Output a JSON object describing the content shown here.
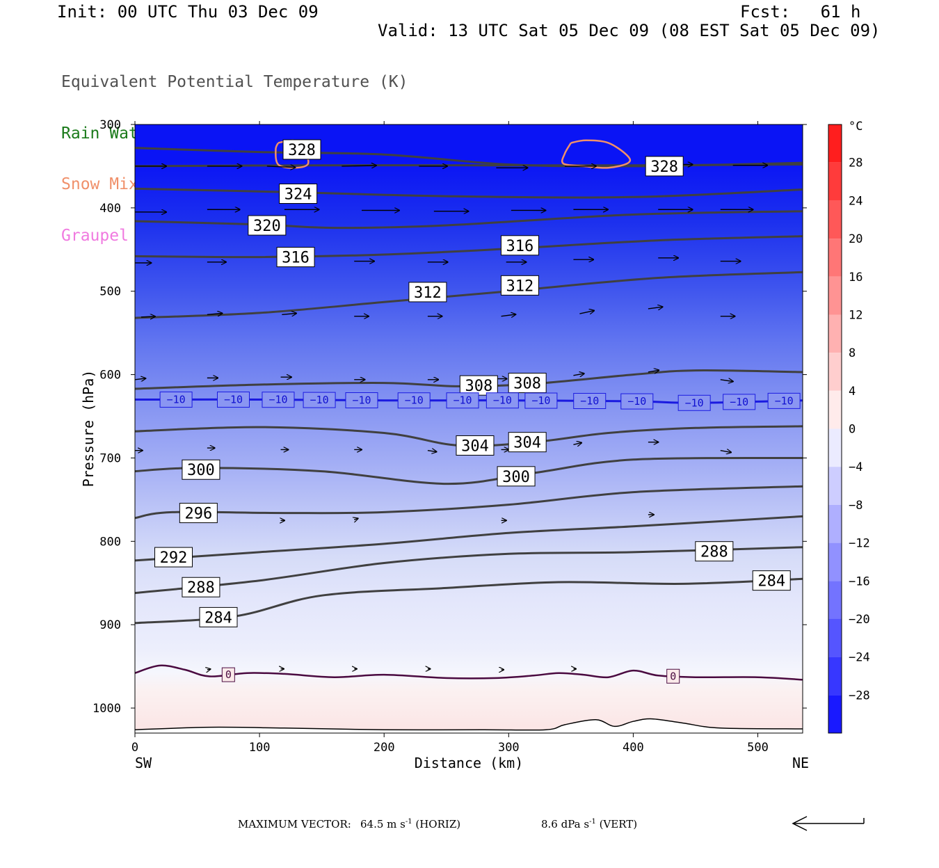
{
  "header": {
    "init": "Init: 00 UTC Thu 03 Dec 09",
    "fcst": "Fcst:   61 h",
    "valid": "Valid: 13 UTC Sat 05 Dec 09 (08 EST Sat 05 Dec 09)"
  },
  "legend": [
    {
      "label": "Equivalent Potential Temperature (K)",
      "color": "#505050"
    },
    {
      "label": "Rain Water Mixing Ratio (g/kg)",
      "color": "#1a7a1a"
    },
    {
      "label": "Snow Mixing Ratio (g/kg)",
      "color": "#f0906a"
    },
    {
      "label": "Graupel Mixing Ratio (g/kg)",
      "color": "#f07ae0"
    }
  ],
  "chart_data": {
    "type": "heatmap",
    "xlabel": "Distance (km)",
    "ylabel": "Pressure (hPa)",
    "xlim": [
      0,
      536
    ],
    "ylim": [
      1030,
      300
    ],
    "x_ticks": [
      0,
      100,
      200,
      300,
      400,
      500
    ],
    "y_ticks": [
      300,
      400,
      500,
      600,
      700,
      800,
      900,
      1000
    ],
    "x_end_labels": {
      "left": "SW",
      "right": "NE"
    },
    "colorbar": {
      "unit": "°C",
      "range": [
        -32,
        32
      ],
      "tick_values": [
        28,
        24,
        20,
        16,
        12,
        8,
        4,
        0,
        -4,
        -8,
        -12,
        -16,
        -20,
        -24,
        -28
      ]
    },
    "theta_e_contours": [
      {
        "value": 328,
        "p": [
          [
            0,
            328
          ],
          [
            100,
            333
          ],
          [
            200,
            336
          ],
          [
            300,
            348
          ],
          [
            400,
            350
          ],
          [
            536,
            346
          ]
        ]
      },
      {
        "value": 328,
        "p": [
          [
            0,
            350
          ],
          [
            150,
            349
          ],
          [
            300,
            349
          ],
          [
            400,
            349
          ],
          [
            536,
            348
          ]
        ]
      },
      {
        "value": 324,
        "p": [
          [
            0,
            377
          ],
          [
            120,
            381
          ],
          [
            250,
            386
          ],
          [
            400,
            387
          ],
          [
            536,
            378
          ]
        ]
      },
      {
        "value": 320,
        "p": [
          [
            0,
            416
          ],
          [
            100,
            420
          ],
          [
            160,
            424
          ],
          [
            250,
            421
          ],
          [
            400,
            408
          ],
          [
            536,
            404
          ]
        ]
      },
      {
        "value": 316,
        "p": [
          [
            0,
            458
          ],
          [
            100,
            459
          ],
          [
            200,
            456
          ],
          [
            300,
            449
          ],
          [
            420,
            439
          ],
          [
            536,
            434
          ]
        ]
      },
      {
        "value": 312,
        "p": [
          [
            0,
            532
          ],
          [
            100,
            526
          ],
          [
            200,
            513
          ],
          [
            300,
            500
          ],
          [
            420,
            484
          ],
          [
            536,
            477
          ]
        ]
      },
      {
        "value": 308,
        "p": [
          [
            0,
            617
          ],
          [
            100,
            612
          ],
          [
            200,
            610
          ],
          [
            260,
            614
          ],
          [
            320,
            611
          ],
          [
            400,
            600
          ],
          [
            450,
            595
          ],
          [
            536,
            597
          ]
        ]
      },
      {
        "value": 304,
        "p": [
          [
            0,
            668
          ],
          [
            100,
            663
          ],
          [
            200,
            670
          ],
          [
            260,
            685
          ],
          [
            320,
            681
          ],
          [
            380,
            670
          ],
          [
            450,
            664
          ],
          [
            536,
            662
          ]
        ]
      },
      {
        "value": 300,
        "p": [
          [
            0,
            716
          ],
          [
            50,
            712
          ],
          [
            150,
            716
          ],
          [
            250,
            731
          ],
          [
            320,
            718
          ],
          [
            400,
            702
          ],
          [
            536,
            700
          ]
        ]
      },
      {
        "value": 296,
        "p": [
          [
            0,
            772
          ],
          [
            30,
            765
          ],
          [
            120,
            766
          ],
          [
            200,
            765
          ],
          [
            300,
            756
          ],
          [
            400,
            741
          ],
          [
            536,
            734
          ]
        ]
      },
      {
        "value": 292,
        "p": [
          [
            0,
            823
          ],
          [
            100,
            813
          ],
          [
            200,
            803
          ],
          [
            300,
            790
          ],
          [
            400,
            782
          ],
          [
            536,
            770
          ]
        ]
      },
      {
        "value": 288,
        "p": [
          [
            0,
            862
          ],
          [
            100,
            847
          ],
          [
            200,
            826
          ],
          [
            300,
            815
          ],
          [
            400,
            813
          ],
          [
            536,
            807
          ]
        ]
      },
      {
        "value": 284,
        "p": [
          [
            0,
            898
          ],
          [
            80,
            890
          ],
          [
            150,
            865
          ],
          [
            250,
            856
          ],
          [
            340,
            849
          ],
          [
            440,
            851
          ],
          [
            536,
            845
          ]
        ]
      }
    ],
    "contour_labels": [
      {
        "text": "328",
        "x": 134,
        "p": 330
      },
      {
        "text": "328",
        "x": 425,
        "p": 350
      },
      {
        "text": "324",
        "x": 131,
        "p": 383
      },
      {
        "text": "320",
        "x": 106,
        "p": 421
      },
      {
        "text": "316",
        "x": 129,
        "p": 459
      },
      {
        "text": "316",
        "x": 309,
        "p": 445
      },
      {
        "text": "312",
        "x": 235,
        "p": 501
      },
      {
        "text": "312",
        "x": 309,
        "p": 493
      },
      {
        "text": "308",
        "x": 276,
        "p": 613
      },
      {
        "text": "308",
        "x": 315,
        "p": 610
      },
      {
        "text": "304",
        "x": 273,
        "p": 685
      },
      {
        "text": "304",
        "x": 315,
        "p": 681
      },
      {
        "text": "300",
        "x": 53,
        "p": 714
      },
      {
        "text": "300",
        "x": 306,
        "p": 722
      },
      {
        "text": "296",
        "x": 51,
        "p": 766
      },
      {
        "text": "292",
        "x": 31,
        "p": 819
      },
      {
        "text": "288",
        "x": 53,
        "p": 855
      },
      {
        "text": "288",
        "x": 465,
        "p": 812
      },
      {
        "text": "284",
        "x": 67,
        "p": 891
      },
      {
        "text": "284",
        "x": 511,
        "p": 847
      }
    ],
    "isotherm_minus10": {
      "value": -10,
      "p": [
        [
          0,
          630
        ],
        [
          100,
          630
        ],
        [
          200,
          631
        ],
        [
          300,
          631
        ],
        [
          400,
          632
        ],
        [
          450,
          634
        ],
        [
          536,
          631
        ]
      ],
      "label_x": [
        33,
        79,
        115,
        148,
        182,
        224,
        263,
        295,
        326,
        365,
        403,
        449,
        485,
        521
      ]
    },
    "isotherm_zero": {
      "value": 0,
      "p": [
        [
          0,
          958
        ],
        [
          20,
          949
        ],
        [
          40,
          954
        ],
        [
          60,
          962
        ],
        [
          90,
          958
        ],
        [
          120,
          959
        ],
        [
          160,
          963
        ],
        [
          200,
          960
        ],
        [
          250,
          964
        ],
        [
          290,
          964
        ],
        [
          320,
          961
        ],
        [
          340,
          958
        ],
        [
          360,
          960
        ],
        [
          380,
          963
        ],
        [
          400,
          955
        ],
        [
          420,
          961
        ],
        [
          450,
          963
        ],
        [
          500,
          963
        ],
        [
          536,
          966
        ]
      ],
      "label_x": [
        75,
        432
      ]
    },
    "surface_pressure": {
      "p": [
        [
          0,
          1026
        ],
        [
          60,
          1023
        ],
        [
          120,
          1024
        ],
        [
          200,
          1026
        ],
        [
          280,
          1026
        ],
        [
          330,
          1026
        ],
        [
          345,
          1020
        ],
        [
          370,
          1014
        ],
        [
          385,
          1022
        ],
        [
          400,
          1016
        ],
        [
          415,
          1013
        ],
        [
          440,
          1018
        ],
        [
          470,
          1024
        ],
        [
          536,
          1025
        ]
      ]
    },
    "snow_mixing_contours": [
      {
        "p": [
          [
            115,
            322
          ],
          [
            128,
            319
          ],
          [
            135,
            328
          ],
          [
            139,
            347
          ],
          [
            128,
            352
          ],
          [
            115,
            348
          ],
          [
            113,
            330
          ]
        ]
      },
      {
        "p": [
          [
            350,
            322
          ],
          [
            362,
            319
          ],
          [
            380,
            322
          ],
          [
            395,
            337
          ],
          [
            396,
            346
          ],
          [
            380,
            352
          ],
          [
            360,
            350
          ],
          [
            344,
            347
          ],
          [
            345,
            335
          ]
        ]
      }
    ],
    "wind_vectors": [
      {
        "x": 0,
        "p": 350,
        "u": 5.0,
        "v": 0.0
      },
      {
        "x": 58,
        "p": 350,
        "u": 5.5,
        "v": 0.0
      },
      {
        "x": 106,
        "p": 350,
        "u": 4.5,
        "v": -0.2
      },
      {
        "x": 166,
        "p": 350,
        "u": 5.5,
        "v": 0.1
      },
      {
        "x": 228,
        "p": 350,
        "u": 4.5,
        "v": 0.0
      },
      {
        "x": 290,
        "p": 352,
        "u": 5.0,
        "v": 0.0
      },
      {
        "x": 345,
        "p": 350,
        "u": 5.0,
        "v": 0.0
      },
      {
        "x": 420,
        "p": 348,
        "u": 5.5,
        "v": 0.0
      },
      {
        "x": 480,
        "p": 349,
        "u": 5.5,
        "v": 0.0
      },
      {
        "x": 0,
        "p": 405,
        "u": 5.0,
        "v": 0.0
      },
      {
        "x": 58,
        "p": 402,
        "u": 5.2,
        "v": 0.0
      },
      {
        "x": 120,
        "p": 402,
        "u": 5.5,
        "v": 0.0
      },
      {
        "x": 182,
        "p": 403,
        "u": 6.0,
        "v": 0.0
      },
      {
        "x": 240,
        "p": 404,
        "u": 5.5,
        "v": 0.0
      },
      {
        "x": 302,
        "p": 403,
        "u": 5.5,
        "v": 0.0
      },
      {
        "x": 352,
        "p": 402,
        "u": 5.5,
        "v": 0.0
      },
      {
        "x": 420,
        "p": 402,
        "u": 5.5,
        "v": 0.0
      },
      {
        "x": 470,
        "p": 402,
        "u": 5.2,
        "v": 0.0
      },
      {
        "x": 0,
        "p": 466,
        "u": 2.6,
        "v": 0.0
      },
      {
        "x": 58,
        "p": 465,
        "u": 3.0,
        "v": 0.0
      },
      {
        "x": 115,
        "p": 464,
        "u": 3.5,
        "v": 0.0
      },
      {
        "x": 176,
        "p": 464,
        "u": 3.2,
        "v": 0.0
      },
      {
        "x": 235,
        "p": 465,
        "u": 3.2,
        "v": 0.0
      },
      {
        "x": 298,
        "p": 465,
        "u": 3.2,
        "v": 0.0
      },
      {
        "x": 352,
        "p": 462,
        "u": 3.2,
        "v": 0.0
      },
      {
        "x": 420,
        "p": 460,
        "u": 3.2,
        "v": 0.0
      },
      {
        "x": 470,
        "p": 464,
        "u": 3.2,
        "v": 0.0
      },
      {
        "x": 5,
        "p": 531,
        "u": 2.2,
        "v": 0.1
      },
      {
        "x": 58,
        "p": 528,
        "u": 2.4,
        "v": 0.2
      },
      {
        "x": 118,
        "p": 528,
        "u": 2.3,
        "v": 0.2
      },
      {
        "x": 176,
        "p": 530,
        "u": 2.3,
        "v": 0.0
      },
      {
        "x": 235,
        "p": 530,
        "u": 2.3,
        "v": 0.0
      },
      {
        "x": 294,
        "p": 530,
        "u": 2.3,
        "v": 0.3
      },
      {
        "x": 357,
        "p": 527,
        "u": 2.3,
        "v": 0.5
      },
      {
        "x": 412,
        "p": 521,
        "u": 2.3,
        "v": 0.3
      },
      {
        "x": 470,
        "p": 530,
        "u": 2.3,
        "v": 0.0
      },
      {
        "x": 0,
        "p": 606,
        "u": 1.7,
        "v": 0.2
      },
      {
        "x": 58,
        "p": 604,
        "u": 1.7,
        "v": 0.0
      },
      {
        "x": 117,
        "p": 603,
        "u": 1.7,
        "v": 0.0
      },
      {
        "x": 176,
        "p": 606,
        "u": 1.7,
        "v": 0.0
      },
      {
        "x": 235,
        "p": 606,
        "u": 1.7,
        "v": 0.0
      },
      {
        "x": 290,
        "p": 605,
        "u": 1.7,
        "v": 0.0
      },
      {
        "x": 352,
        "p": 601,
        "u": 1.7,
        "v": 0.3
      },
      {
        "x": 412,
        "p": 597,
        "u": 1.7,
        "v": 0.3
      },
      {
        "x": 470,
        "p": 606,
        "u": 2.0,
        "v": -0.3
      },
      {
        "x": 0,
        "p": 691,
        "u": 1.2,
        "v": 0.0
      },
      {
        "x": 58,
        "p": 688,
        "u": 1.2,
        "v": 0.0
      },
      {
        "x": 117,
        "p": 690,
        "u": 1.2,
        "v": 0.0
      },
      {
        "x": 176,
        "p": 690,
        "u": 1.2,
        "v": 0.0
      },
      {
        "x": 235,
        "p": 691,
        "u": 1.4,
        "v": -0.2
      },
      {
        "x": 294,
        "p": 690,
        "u": 1.2,
        "v": 0.0
      },
      {
        "x": 352,
        "p": 684,
        "u": 1.3,
        "v": 0.3
      },
      {
        "x": 412,
        "p": 681,
        "u": 1.6,
        "v": 0.0
      },
      {
        "x": 470,
        "p": 691,
        "u": 1.7,
        "v": -0.3
      },
      {
        "x": 117,
        "p": 775,
        "u": 0.6,
        "v": 0.0
      },
      {
        "x": 176,
        "p": 774,
        "u": 0.6,
        "v": 0.2
      },
      {
        "x": 294,
        "p": 775,
        "u": 0.8,
        "v": 0.0
      },
      {
        "x": 412,
        "p": 768,
        "u": 0.9,
        "v": 0.0
      },
      {
        "x": 117,
        "p": 953,
        "u": 0.5,
        "v": 0.0
      },
      {
        "x": 176,
        "p": 953,
        "u": 0.4,
        "v": 0.0
      },
      {
        "x": 235,
        "p": 953,
        "u": 0.4,
        "v": 0.0
      },
      {
        "x": 294,
        "p": 954,
        "u": 0.4,
        "v": 0.0
      },
      {
        "x": 352,
        "p": 953,
        "u": 0.4,
        "v": 0.0
      },
      {
        "x": 58,
        "p": 954,
        "u": 0.5,
        "v": 0.1
      }
    ]
  },
  "footer": {
    "label": "MAXIMUM VECTOR:",
    "horiz_value": "64.5 m s",
    "horiz_suffix": " (HORIZ)",
    "vert_value": "8.6 dPa s",
    "vert_suffix": " (VERT)",
    "exponent": "-1"
  }
}
